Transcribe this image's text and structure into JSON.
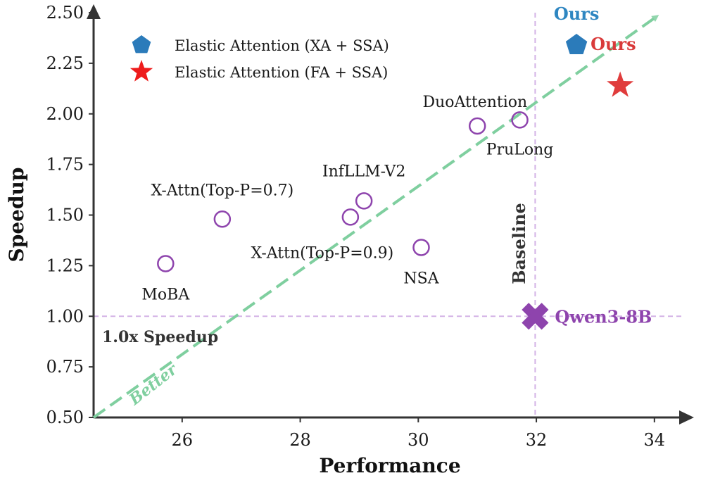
{
  "chart_data": {
    "type": "scatter",
    "xlabel": "Performance",
    "ylabel": "Speedup",
    "xlim": [
      24.5,
      34.5
    ],
    "ylim": [
      0.5,
      2.5
    ],
    "xticks": [
      "26",
      "28",
      "30",
      "32",
      "34"
    ],
    "xtick_values": [
      26,
      28,
      30,
      32,
      34
    ],
    "yticks": [
      "0.50",
      "0.75",
      "1.00",
      "1.25",
      "1.50",
      "1.75",
      "2.00",
      "2.25",
      "2.50"
    ],
    "ytick_values": [
      0.5,
      0.75,
      1.0,
      1.25,
      1.5,
      1.75,
      2.0,
      2.25,
      2.5
    ],
    "grid": false,
    "legend_position": "top-left",
    "legend": [
      {
        "label": "Elastic Attention (XA + SSA)",
        "marker": "pentagon",
        "color": "#2b7bba"
      },
      {
        "label": "Elastic Attention (FA + SSA)",
        "marker": "star",
        "color": "#ee1c1c"
      }
    ],
    "baselines": [
      {
        "name": "MoBA",
        "x": 25.72,
        "y": 1.26
      },
      {
        "name": "X-Attn(Top-P=0.7)",
        "x": 26.68,
        "y": 1.48
      },
      {
        "name": "X-Attn(Top-P=0.9)",
        "x": 28.85,
        "y": 1.49
      },
      {
        "name": "InfLLM-V2",
        "x": 29.08,
        "y": 1.57
      },
      {
        "name": "NSA",
        "x": 30.05,
        "y": 1.34
      },
      {
        "name": "DuoAttention",
        "x": 31.0,
        "y": 1.94
      },
      {
        "name": "PruLong",
        "x": 31.72,
        "y": 1.97
      }
    ],
    "baseline_color": "#8e44ad",
    "ours": [
      {
        "label": "Ours",
        "marker": "pentagon",
        "color": "#2b7bba",
        "label_color": "#2e86c1",
        "x": 32.68,
        "y": 2.34
      },
      {
        "label": "Ours",
        "marker": "star",
        "color": "#e03c3c",
        "label_color": "#d93a3a",
        "x": 33.42,
        "y": 2.14
      }
    ],
    "reference_model": {
      "name": "Qwen3-8B",
      "x": 31.98,
      "y": 1.0,
      "color": "#8e44ad"
    },
    "reference_lines": [
      {
        "orientation": "vertical",
        "x": 31.98,
        "label": "Baseline",
        "color": "#d4b3e6"
      },
      {
        "orientation": "horizontal",
        "y": 1.0,
        "label": "1.0x Speedup",
        "color": "#d4b3e6"
      }
    ],
    "trend_arrow": {
      "label": "Better",
      "from": [
        24.5,
        0.5
      ],
      "to": [
        34.1,
        2.5
      ],
      "color": "#7fcf9f"
    }
  }
}
